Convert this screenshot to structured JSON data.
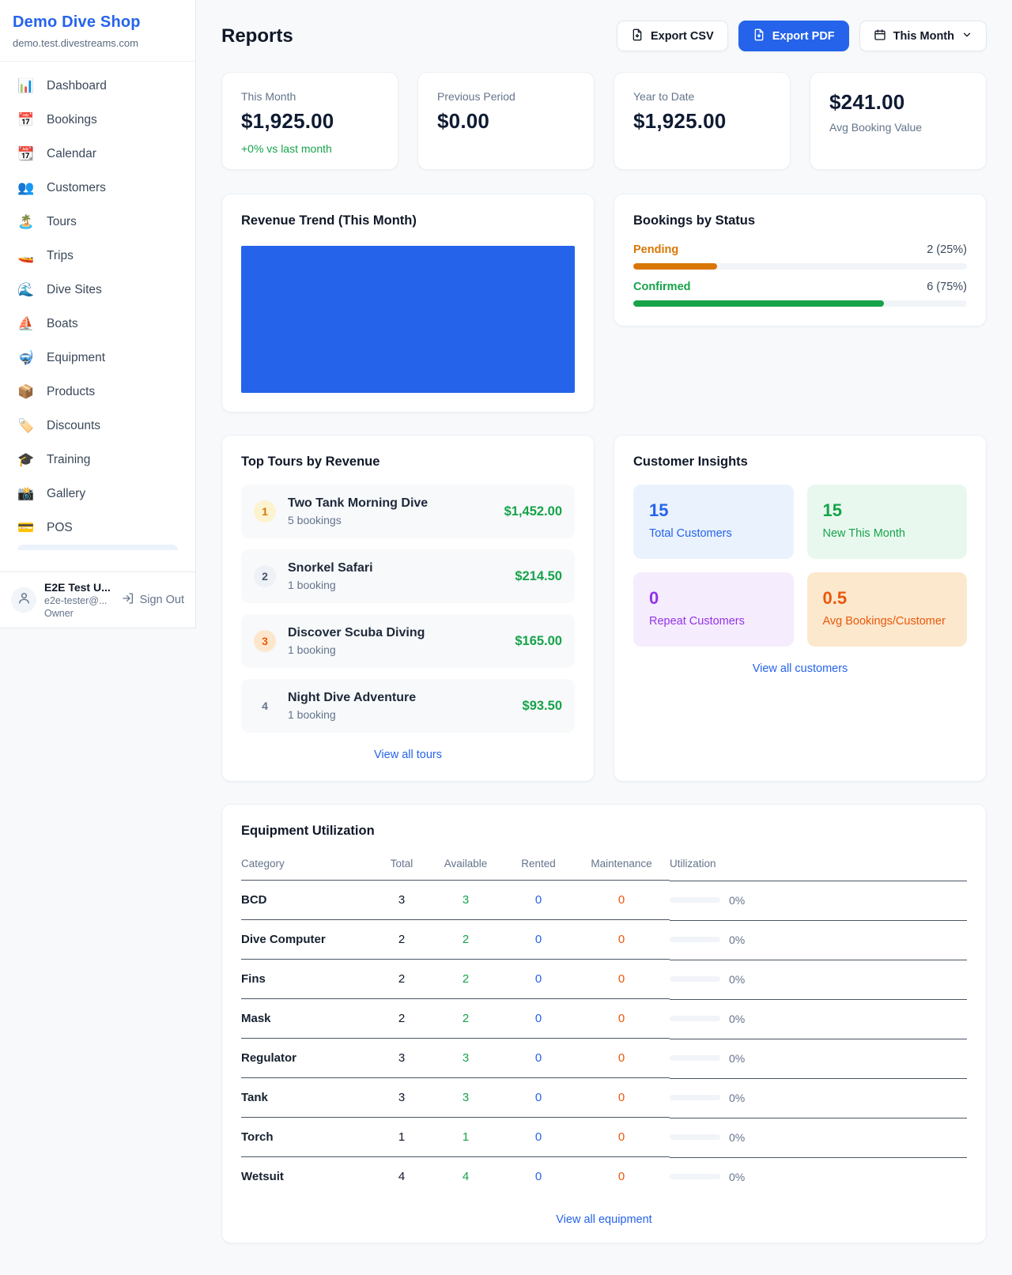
{
  "app": {
    "name": "Demo Dive Shop",
    "domain": "demo.test.divestreams.com"
  },
  "sidebar": {
    "items": [
      {
        "icon": "📊",
        "label": "Dashboard"
      },
      {
        "icon": "📅",
        "label": "Bookings"
      },
      {
        "icon": "📆",
        "label": "Calendar"
      },
      {
        "icon": "👥",
        "label": "Customers"
      },
      {
        "icon": "🏝️",
        "label": "Tours"
      },
      {
        "icon": "🚤",
        "label": "Trips"
      },
      {
        "icon": "🌊",
        "label": "Dive Sites"
      },
      {
        "icon": "⛵",
        "label": "Boats"
      },
      {
        "icon": "🤿",
        "label": "Equipment"
      },
      {
        "icon": "📦",
        "label": "Products"
      },
      {
        "icon": "🏷️",
        "label": "Discounts"
      },
      {
        "icon": "🎓",
        "label": "Training"
      },
      {
        "icon": "📸",
        "label": "Gallery"
      },
      {
        "icon": "💳",
        "label": "POS"
      }
    ],
    "user": {
      "name": "E2E Test U...",
      "email": "e2e-tester@...",
      "role": "Owner",
      "sign_out": "Sign Out"
    }
  },
  "header": {
    "title": "Reports",
    "export_csv": "Export CSV",
    "export_pdf": "Export PDF",
    "period": "This Month",
    "primary_color": "#2563eb"
  },
  "stats": [
    {
      "label": "This Month",
      "value": "$1,925.00",
      "delta": "+0% vs last month"
    },
    {
      "label": "Previous Period",
      "value": "$0.00"
    },
    {
      "label": "Year to Date",
      "value": "$1,925.00"
    },
    {
      "label": "Avg Booking Value",
      "value": "$241.00"
    }
  ],
  "revenue_trend": {
    "title": "Revenue Trend (This Month)",
    "fill_color": "#2563eb"
  },
  "bookings_by_status": {
    "title": "Bookings by Status",
    "rows": [
      {
        "label": "Pending",
        "value": "2 (25%)",
        "pct": 25,
        "color": "#d97706"
      },
      {
        "label": "Confirmed",
        "value": "6 (75%)",
        "pct": 75,
        "color": "#16a34a"
      }
    ]
  },
  "top_tours": {
    "title": "Top Tours by Revenue",
    "rows": [
      {
        "rank": "1",
        "name": "Two Tank Morning Dive",
        "bookings": "5 bookings",
        "revenue": "$1,452.00",
        "badge_bg": "#fdf3cf",
        "badge_color": "#d97706"
      },
      {
        "rank": "2",
        "name": "Snorkel Safari",
        "bookings": "1 booking",
        "revenue": "$214.50",
        "badge_bg": "#eef1f5",
        "badge_color": "#475569"
      },
      {
        "rank": "3",
        "name": "Discover Scuba Diving",
        "bookings": "1 booking",
        "revenue": "$165.00",
        "badge_bg": "#fce7cd",
        "badge_color": "#ea580c"
      },
      {
        "rank": "4",
        "name": "Night Dive Adventure",
        "bookings": "1 booking",
        "revenue": "$93.50",
        "badge_bg": "transparent",
        "badge_color": "#64748b"
      }
    ],
    "link": "View all tours"
  },
  "customer_insights": {
    "title": "Customer Insights",
    "tiles": [
      {
        "value": "15",
        "label": "Total Customers",
        "bg": "#eaf2fe",
        "color": "#2563eb"
      },
      {
        "value": "15",
        "label": "New This Month",
        "bg": "#e9f8ef",
        "color": "#16a34a"
      },
      {
        "value": "0",
        "label": "Repeat Customers",
        "bg": "#f5ecfd",
        "color": "#9333ea"
      },
      {
        "value": "0.5",
        "label": "Avg Bookings/Customer",
        "bg": "#fce8cd",
        "color": "#ea580c"
      }
    ],
    "link": "View all customers"
  },
  "equipment": {
    "title": "Equipment Utilization",
    "columns": [
      "Category",
      "Total",
      "Available",
      "Rented",
      "Maintenance",
      "Utilization"
    ],
    "rows": [
      {
        "category": "BCD",
        "total": "3",
        "available": "3",
        "rented": "0",
        "maintenance": "0",
        "utilization": "0%",
        "pct": 0
      },
      {
        "category": "Dive Computer",
        "total": "2",
        "available": "2",
        "rented": "0",
        "maintenance": "0",
        "utilization": "0%",
        "pct": 0
      },
      {
        "category": "Fins",
        "total": "2",
        "available": "2",
        "rented": "0",
        "maintenance": "0",
        "utilization": "0%",
        "pct": 0
      },
      {
        "category": "Mask",
        "total": "2",
        "available": "2",
        "rented": "0",
        "maintenance": "0",
        "utilization": "0%",
        "pct": 0
      },
      {
        "category": "Regulator",
        "total": "3",
        "available": "3",
        "rented": "0",
        "maintenance": "0",
        "utilization": "0%",
        "pct": 0
      },
      {
        "category": "Tank",
        "total": "3",
        "available": "3",
        "rented": "0",
        "maintenance": "0",
        "utilization": "0%",
        "pct": 0
      },
      {
        "category": "Torch",
        "total": "1",
        "available": "1",
        "rented": "0",
        "maintenance": "0",
        "utilization": "0%",
        "pct": 0
      },
      {
        "category": "Wetsuit",
        "total": "4",
        "available": "4",
        "rented": "0",
        "maintenance": "0",
        "utilization": "0%",
        "pct": 0
      }
    ],
    "link": "View all equipment"
  }
}
